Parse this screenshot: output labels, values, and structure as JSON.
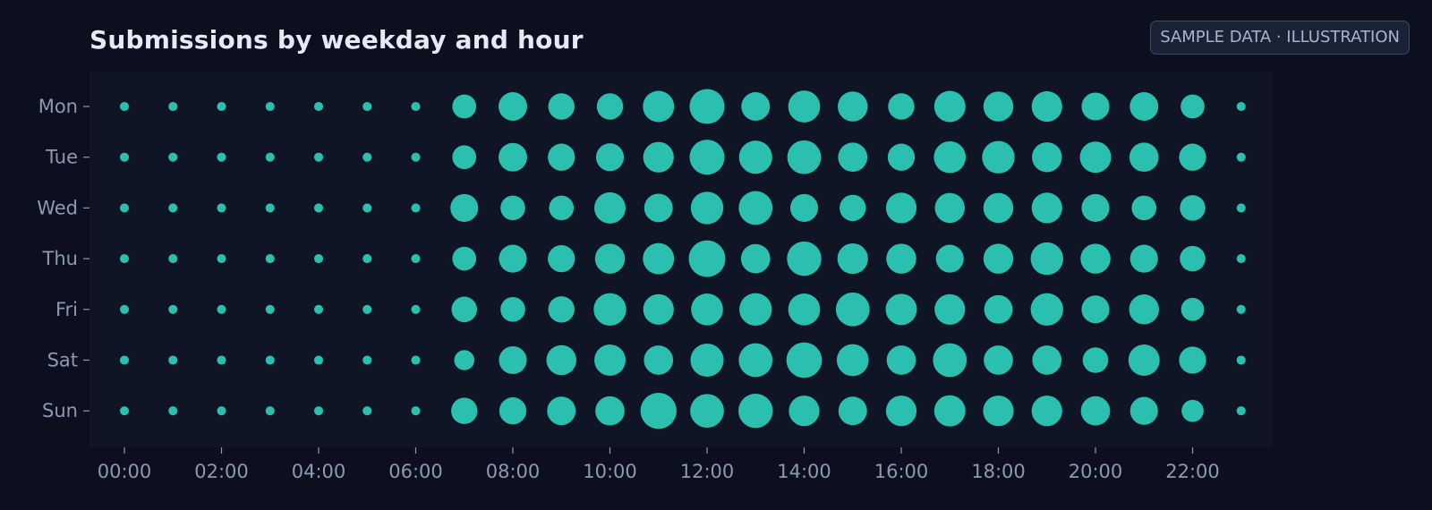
{
  "title": "Submissions by weekday and hour",
  "badge": "SAMPLE DATA · ILLUSTRATION",
  "colors": {
    "background": "#0b0f1e",
    "plot_background": "#0f1524",
    "dot": "#2abfae",
    "text": "#e6eaf5",
    "tick_text": "#8f98b2"
  },
  "chart_data": {
    "type": "scatter",
    "subtype": "bubble-matrix",
    "title": "Submissions by weekday and hour",
    "xlabel": "",
    "ylabel": "",
    "x_ticks": [
      "00:00",
      "02:00",
      "04:00",
      "06:00",
      "08:00",
      "10:00",
      "12:00",
      "14:00",
      "16:00",
      "18:00",
      "20:00",
      "22:00"
    ],
    "hours": [
      0,
      1,
      2,
      3,
      4,
      5,
      6,
      7,
      8,
      9,
      10,
      11,
      12,
      13,
      14,
      15,
      16,
      17,
      18,
      19,
      20,
      21,
      22,
      23
    ],
    "days": [
      "Mon",
      "Tue",
      "Wed",
      "Thu",
      "Fri",
      "Sat",
      "Sun"
    ],
    "grid": false,
    "size_encoding": "dot area proportional to relative submission volume",
    "values": [
      [
        2,
        2,
        2,
        2,
        2,
        2,
        2,
        14,
        20,
        17,
        17,
        24,
        30,
        20,
        25,
        22,
        17,
        24,
        22,
        23,
        19,
        20,
        14,
        2
      ],
      [
        2,
        2,
        2,
        2,
        2,
        2,
        2,
        14,
        20,
        18,
        19,
        23,
        30,
        27,
        28,
        21,
        18,
        25,
        26,
        22,
        24,
        21,
        18,
        2
      ],
      [
        2,
        2,
        2,
        2,
        2,
        2,
        2,
        19,
        15,
        15,
        24,
        20,
        26,
        28,
        19,
        17,
        23,
        22,
        22,
        23,
        19,
        15,
        16,
        2
      ],
      [
        2,
        2,
        2,
        2,
        2,
        2,
        2,
        14,
        19,
        18,
        22,
        24,
        33,
        21,
        29,
        23,
        22,
        19,
        22,
        26,
        22,
        19,
        16,
        2
      ],
      [
        2,
        2,
        2,
        2,
        2,
        2,
        2,
        16,
        15,
        17,
        26,
        23,
        25,
        26,
        25,
        28,
        24,
        23,
        20,
        26,
        19,
        22,
        13,
        2
      ],
      [
        2,
        2,
        2,
        2,
        2,
        2,
        2,
        10,
        19,
        22,
        24,
        21,
        27,
        28,
        31,
        25,
        21,
        28,
        21,
        21,
        16,
        24,
        18,
        2
      ],
      [
        2,
        2,
        2,
        2,
        2,
        2,
        2,
        17,
        18,
        20,
        21,
        32,
        28,
        29,
        23,
        20,
        23,
        24,
        23,
        23,
        21,
        19,
        12,
        2
      ]
    ]
  }
}
